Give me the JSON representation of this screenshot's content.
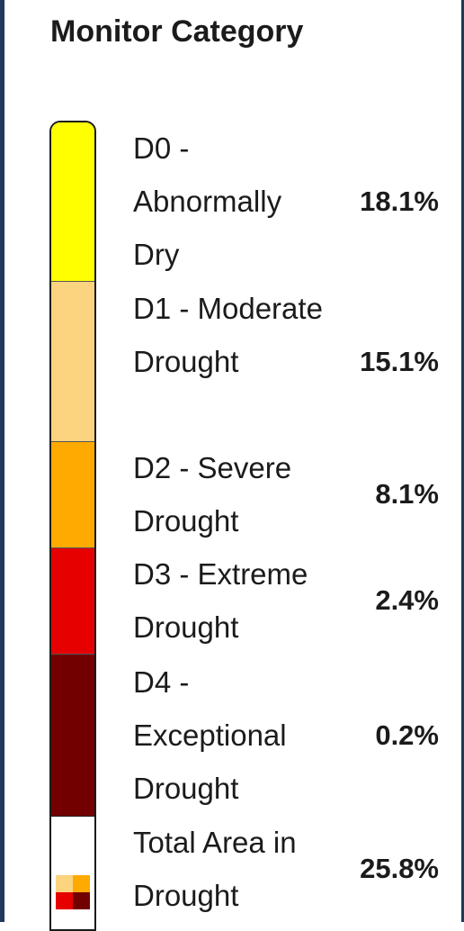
{
  "legend": {
    "title": "Monitor Category",
    "categories": [
      {
        "label": "D0 - Abnormally Dry",
        "value": "18.1%",
        "color": "#FFFF00"
      },
      {
        "label": "D1 - Moderate Drought",
        "value": "15.1%",
        "color": "#FCD37F"
      },
      {
        "label": "D2 - Severe Drought",
        "value": "8.1%",
        "color": "#FFAA00"
      },
      {
        "label": "D3 - Extreme Drought",
        "value": "2.4%",
        "color": "#E60000"
      },
      {
        "label": "D4 - Exceptional Drought",
        "value": "0.2%",
        "color": "#730000"
      }
    ],
    "total": {
      "label": "Total Area in Drought",
      "value": "25.8%"
    }
  }
}
